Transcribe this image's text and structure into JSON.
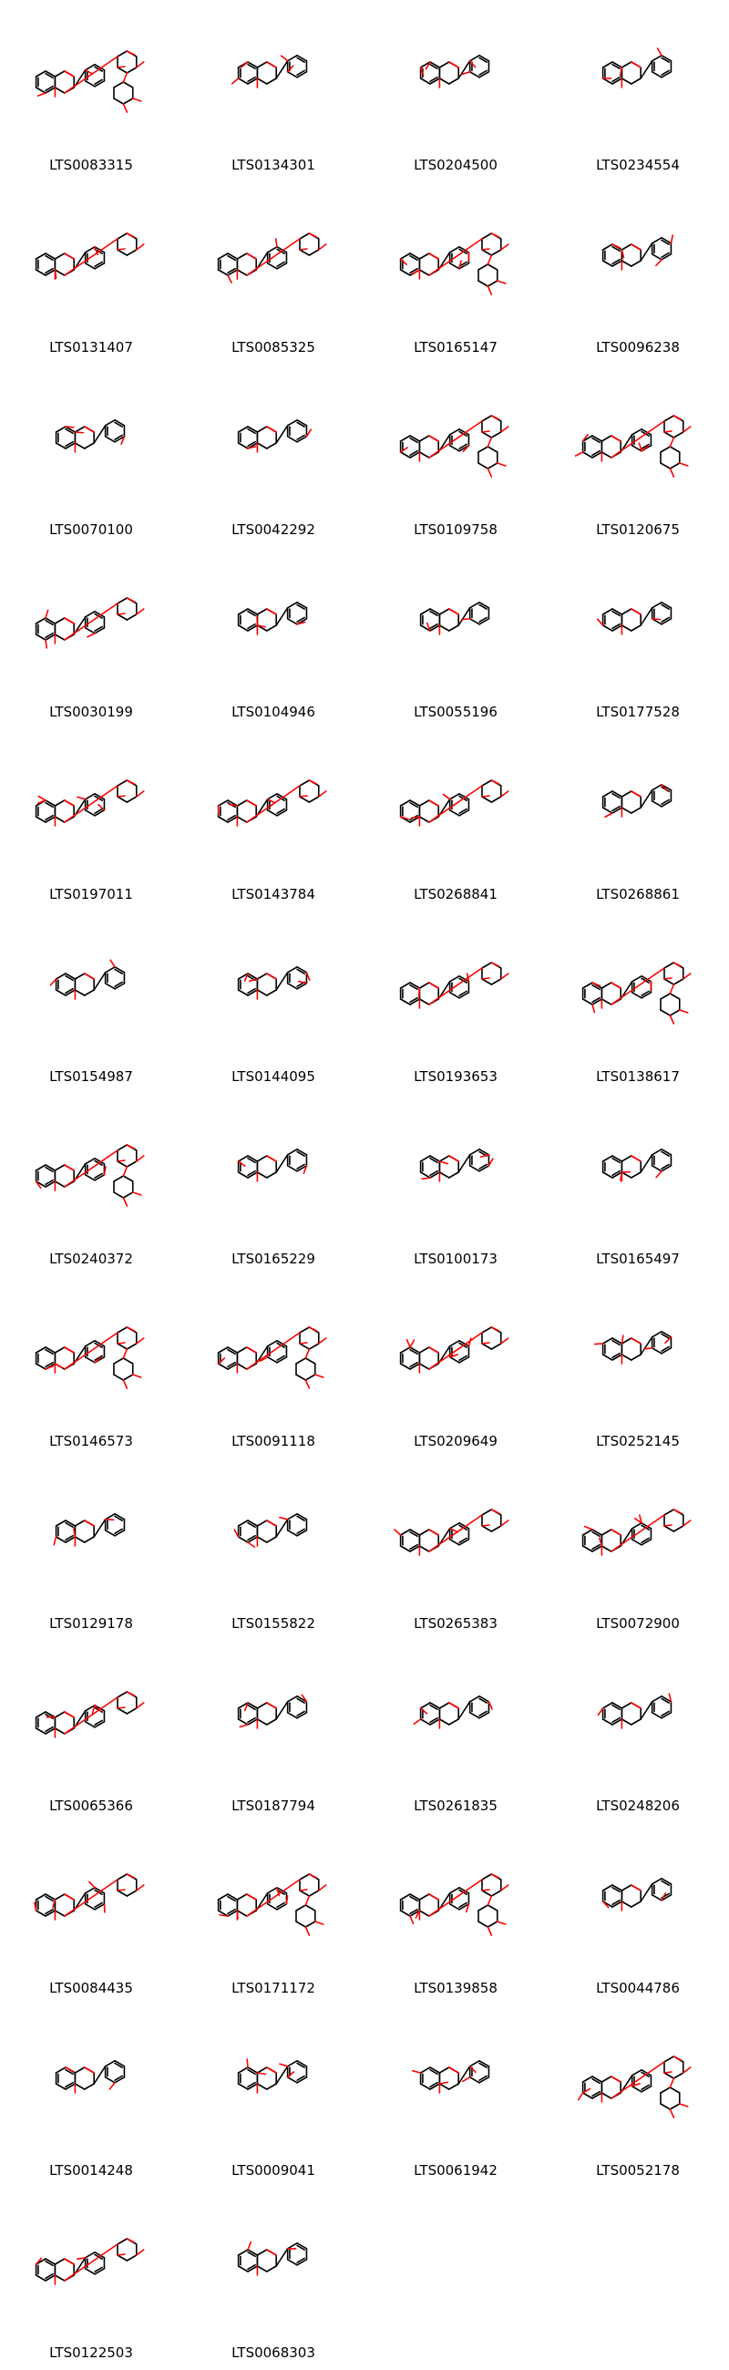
{
  "grid": {
    "molecules": [
      {
        "id": "LTS0083315"
      },
      {
        "id": "LTS0134301"
      },
      {
        "id": "LTS0204500"
      },
      {
        "id": "LTS0234554"
      },
      {
        "id": "LTS0131407"
      },
      {
        "id": "LTS0085325"
      },
      {
        "id": "LTS0165147"
      },
      {
        "id": "LTS0096238"
      },
      {
        "id": "LTS0070100"
      },
      {
        "id": "LTS0042292"
      },
      {
        "id": "LTS0109758"
      },
      {
        "id": "LTS0120675"
      },
      {
        "id": "LTS0030199"
      },
      {
        "id": "LTS0104946"
      },
      {
        "id": "LTS0055196"
      },
      {
        "id": "LTS0177528"
      },
      {
        "id": "LTS0197011"
      },
      {
        "id": "LTS0143784"
      },
      {
        "id": "LTS0268841"
      },
      {
        "id": "LTS0268861"
      },
      {
        "id": "LTS0154987"
      },
      {
        "id": "LTS0144095"
      },
      {
        "id": "LTS0193653"
      },
      {
        "id": "LTS0138617"
      },
      {
        "id": "LTS0240372"
      },
      {
        "id": "LTS0165229"
      },
      {
        "id": "LTS0100173"
      },
      {
        "id": "LTS0165497"
      },
      {
        "id": "LTS0146573"
      },
      {
        "id": "LTS0091118"
      },
      {
        "id": "LTS0209649"
      },
      {
        "id": "LTS0252145"
      },
      {
        "id": "LTS0129178"
      },
      {
        "id": "LTS0155822"
      },
      {
        "id": "LTS0265383"
      },
      {
        "id": "LTS0072900"
      },
      {
        "id": "LTS0065366"
      },
      {
        "id": "LTS0187794"
      },
      {
        "id": "LTS0261835"
      },
      {
        "id": "LTS0248206"
      },
      {
        "id": "LTS0084435"
      },
      {
        "id": "LTS0171172"
      },
      {
        "id": "LTS0139858"
      },
      {
        "id": "LTS0044786"
      },
      {
        "id": "LTS0014248"
      },
      {
        "id": "LTS0009041"
      },
      {
        "id": "LTS0061942"
      },
      {
        "id": "LTS0052178"
      },
      {
        "id": "LTS0122503"
      },
      {
        "id": "LTS0068303"
      }
    ]
  },
  "colors": {
    "bond": "#000000",
    "oxygen": "#ff0000",
    "background": "#ffffff"
  }
}
